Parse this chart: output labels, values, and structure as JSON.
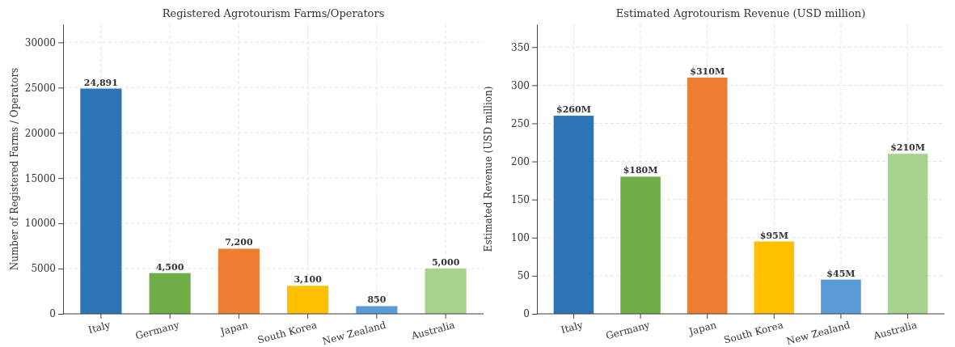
{
  "chart_data": [
    {
      "type": "bar",
      "title": "Registered Agrotourism Farms/Operators",
      "ylabel": "Number of Registered Farms / Operators",
      "categories": [
        "Italy",
        "Germany",
        "Japan",
        "South Korea",
        "New Zealand",
        "Australia"
      ],
      "values": [
        24891,
        4500,
        7200,
        3100,
        850,
        5000
      ],
      "colors": [
        "#2e75b6",
        "#70ad47",
        "#ed7d31",
        "#ffc000",
        "#5b9bd5",
        "#a9d18e"
      ],
      "value_labels": [
        "24,891",
        "4,500",
        "7,200",
        "3,100",
        "850",
        "5,000"
      ],
      "ylim": [
        0,
        32000
      ],
      "yticks": [
        0,
        5000,
        10000,
        15000,
        20000,
        25000,
        30000
      ],
      "grid": true
    },
    {
      "type": "bar",
      "title": "Estimated Agrotourism Revenue (USD million)",
      "ylabel": "Estimated Revenue (USD million)",
      "categories": [
        "Italy",
        "Germany",
        "Japan",
        "South Korea",
        "New Zealand",
        "Australia"
      ],
      "values": [
        260,
        180,
        310,
        95,
        45,
        210
      ],
      "colors": [
        "#2e75b6",
        "#70ad47",
        "#ed7d31",
        "#ffc000",
        "#5b9bd5",
        "#a9d18e"
      ],
      "value_labels": [
        "$260M",
        "$180M",
        "$310M",
        "$95M",
        "$45M",
        "$210M"
      ],
      "ylim": [
        0,
        380
      ],
      "yticks": [
        0,
        50,
        100,
        150,
        200,
        250,
        300,
        350
      ],
      "grid": true
    }
  ]
}
